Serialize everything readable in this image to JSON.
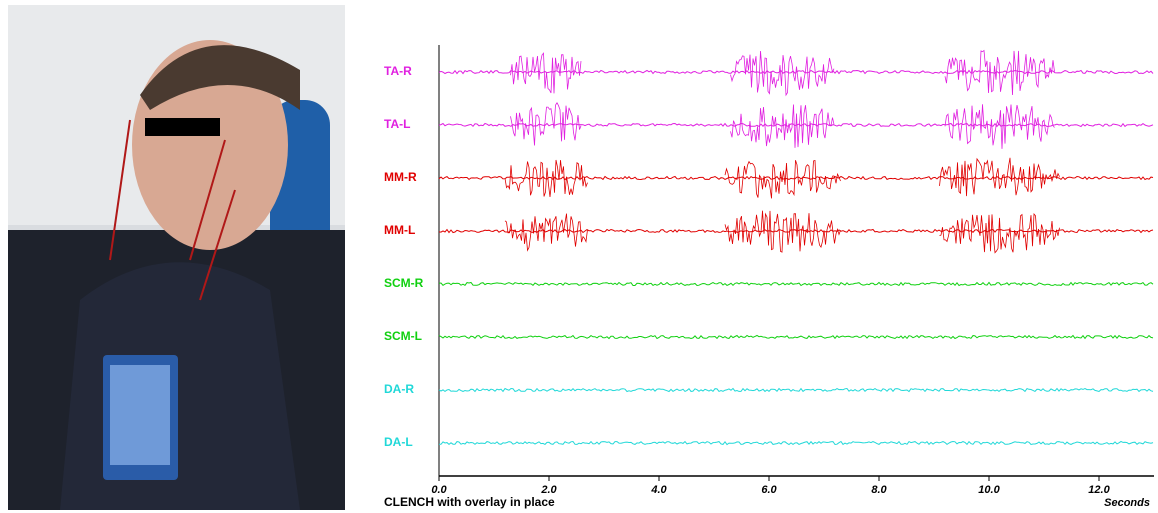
{
  "chart_data": {
    "type": "line",
    "caption": "CLENCH with overlay in place",
    "xlabel": "Seconds",
    "xlim": [
      0,
      13
    ],
    "xticks": [
      {
        "value": 0,
        "label": "0.0"
      },
      {
        "value": 2,
        "label": "2.0"
      },
      {
        "value": 4,
        "label": "4.0"
      },
      {
        "value": 6,
        "label": "6.0"
      },
      {
        "value": 8,
        "label": "8.0"
      },
      {
        "value": 10,
        "label": "10.0"
      },
      {
        "value": 12,
        "label": "12.0"
      }
    ],
    "series": [
      {
        "name": "TA-R",
        "color": "#e020e0",
        "bursts": [
          [
            1.3,
            2.6
          ],
          [
            5.3,
            7.2
          ],
          [
            9.2,
            11.2
          ]
        ]
      },
      {
        "name": "TA-L",
        "color": "#e020e0",
        "bursts": [
          [
            1.3,
            2.6
          ],
          [
            5.3,
            7.2
          ],
          [
            9.2,
            11.2
          ]
        ]
      },
      {
        "name": "MM-R",
        "color": "#e00000",
        "bursts": [
          [
            1.2,
            2.7
          ],
          [
            5.2,
            7.3
          ],
          [
            9.1,
            11.3
          ]
        ]
      },
      {
        "name": "MM-L",
        "color": "#e00000",
        "bursts": [
          [
            1.2,
            2.7
          ],
          [
            5.2,
            7.3
          ],
          [
            9.1,
            11.3
          ]
        ]
      },
      {
        "name": "SCM-R",
        "color": "#10d010",
        "bursts": []
      },
      {
        "name": "SCM-L",
        "color": "#10d010",
        "bursts": []
      },
      {
        "name": "DA-R",
        "color": "#20d8d8",
        "bursts": []
      },
      {
        "name": "DA-L",
        "color": "#20d8d8",
        "bursts": []
      }
    ]
  }
}
